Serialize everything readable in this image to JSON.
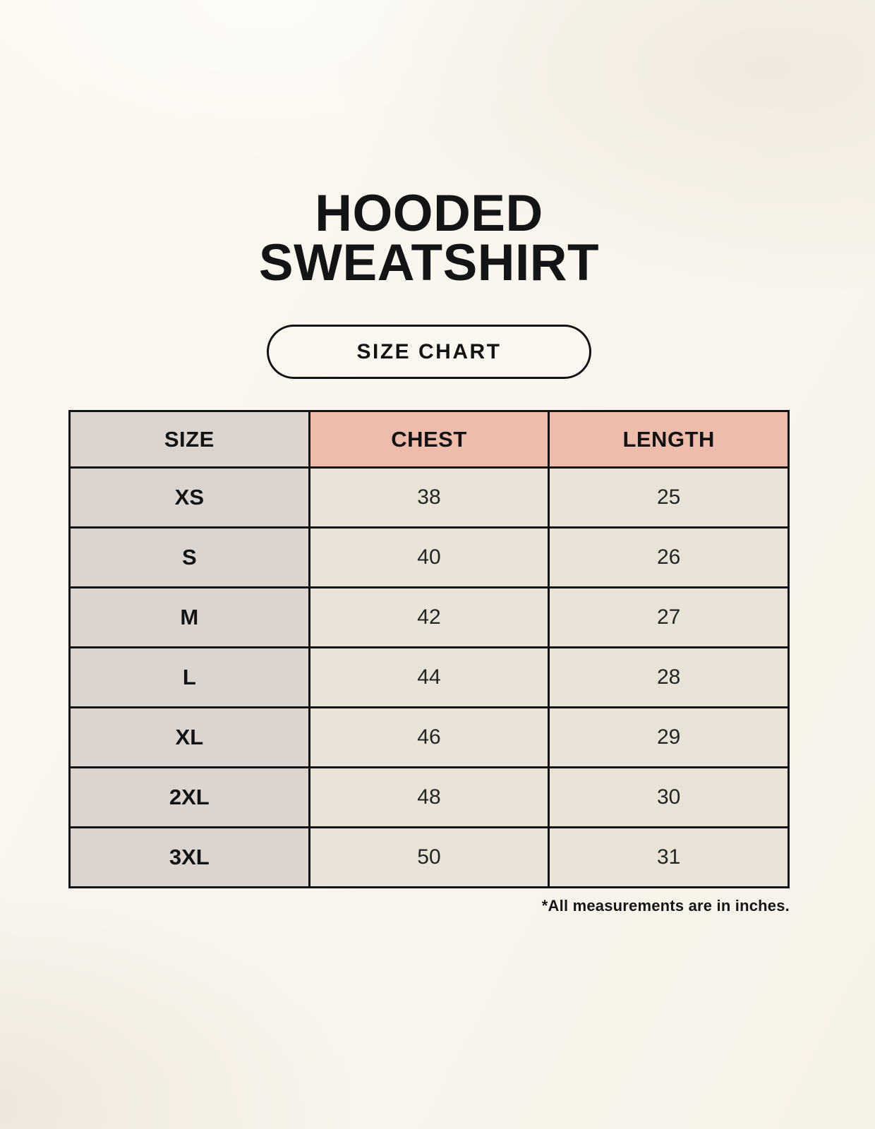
{
  "header": {
    "title_line1": "HOODED",
    "title_line2": "SWEATSHIRT",
    "badge_label": "SIZE CHART"
  },
  "footnote": "*All measurements are in inches.",
  "chart_data": {
    "type": "table",
    "title": "HOODED SWEATSHIRT SIZE CHART",
    "columns": [
      "SIZE",
      "CHEST",
      "LENGTH"
    ],
    "rows": [
      [
        "XS",
        38,
        25
      ],
      [
        "S",
        40,
        26
      ],
      [
        "M",
        42,
        27
      ],
      [
        "L",
        44,
        28
      ],
      [
        "XL",
        46,
        29
      ],
      [
        "2XL",
        48,
        30
      ],
      [
        "3XL",
        50,
        31
      ]
    ],
    "units": "inches",
    "layout": {
      "header_fill_size_col": "#dcd4ce",
      "header_fill_accent": "#eebcac",
      "row_fill_size_col": "#dcd4ce",
      "row_fill_values": "#e9e2d7",
      "grid": "on"
    }
  },
  "colors": {
    "background": "#faf6ee",
    "header_accent": "#eebcac",
    "size_column": "#dcd4ce",
    "data_cell": "#e9e2d7",
    "border": "#121212",
    "text": "#141414"
  }
}
